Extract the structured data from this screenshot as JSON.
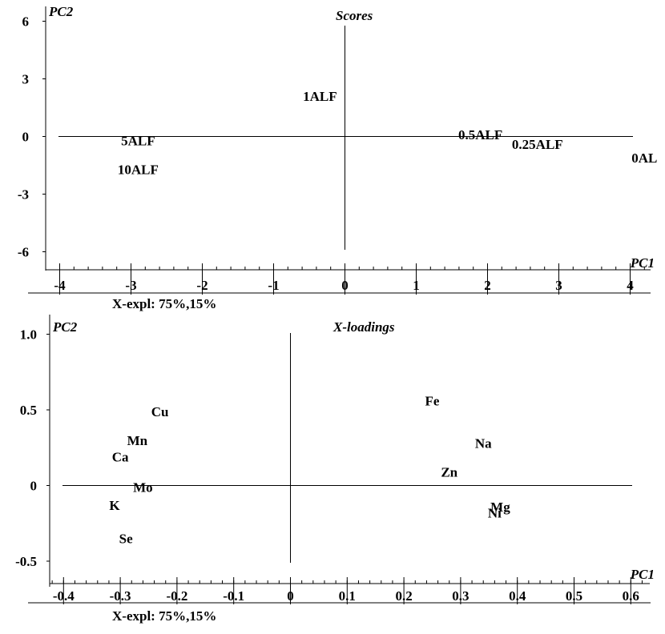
{
  "chart_data": [
    {
      "type": "scatter",
      "title": "Scores",
      "xlabel": "PC1",
      "ylabel": "PC2",
      "footer": "X-expl: 75%,15%",
      "xlim": [
        -4,
        4
      ],
      "ylim": [
        -6,
        6
      ],
      "xticks": [
        "-4",
        "-3",
        "-2",
        "-1",
        "0",
        "1",
        "2",
        "3",
        "4"
      ],
      "yticks": [
        "6",
        "3",
        "0",
        "-3",
        "-6"
      ],
      "points": [
        {
          "label": "1ALF",
          "x": -0.35,
          "y": 2.1
        },
        {
          "label": "5ALF",
          "x": -2.9,
          "y": -0.2
        },
        {
          "label": "10ALF",
          "x": -2.9,
          "y": -1.7
        },
        {
          "label": "0.5ALF",
          "x": 1.9,
          "y": 0.1
        },
        {
          "label": "0.25ALF",
          "x": 2.7,
          "y": -0.4
        },
        {
          "label": "0AL",
          "x": 4.2,
          "y": -1.1
        }
      ]
    },
    {
      "type": "scatter",
      "title": "X-loadings",
      "xlabel": "PC1",
      "ylabel": "PC2",
      "footer": "X-expl: 75%,15%",
      "xlim": [
        -0.4,
        0.6
      ],
      "ylim": [
        -0.5,
        1.0
      ],
      "xticks": [
        "-0.4",
        "-0.3",
        "-0.2",
        "-0.1",
        "0",
        "0.1",
        "0.2",
        "0.3",
        "0.4",
        "0.5",
        "0.6"
      ],
      "yticks": [
        "1.0",
        "0.5",
        "0",
        "-0.5"
      ],
      "points": [
        {
          "label": "Cu",
          "x": -0.23,
          "y": 0.49
        },
        {
          "label": "Mn",
          "x": -0.27,
          "y": 0.3
        },
        {
          "label": "Ca",
          "x": -0.3,
          "y": 0.19
        },
        {
          "label": "Mo",
          "x": -0.26,
          "y": -0.01
        },
        {
          "label": "K",
          "x": -0.31,
          "y": -0.13
        },
        {
          "label": "Se",
          "x": -0.29,
          "y": -0.35
        },
        {
          "label": "Fe",
          "x": 0.25,
          "y": 0.56
        },
        {
          "label": "Na",
          "x": 0.34,
          "y": 0.28
        },
        {
          "label": "Zn",
          "x": 0.28,
          "y": 0.09
        },
        {
          "label": "Mg",
          "x": 0.37,
          "y": -0.14
        },
        {
          "label": "Ni",
          "x": 0.36,
          "y": -0.18
        }
      ]
    }
  ]
}
